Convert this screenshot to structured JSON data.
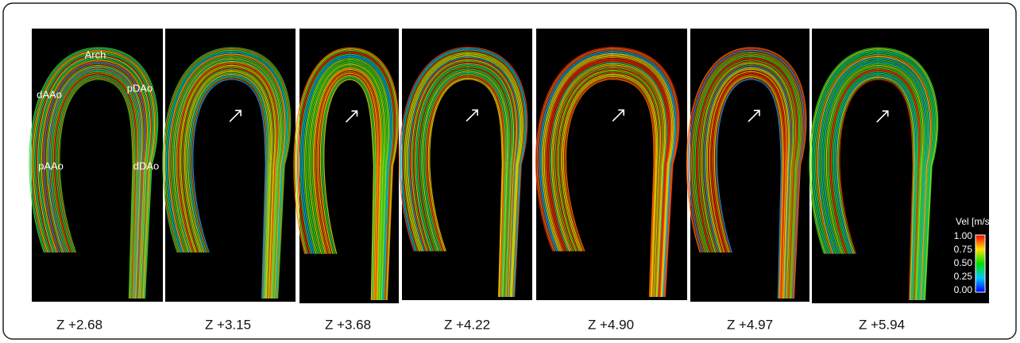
{
  "panels": [
    {
      "label": "Z +2.68"
    },
    {
      "label": "Z +3.15"
    },
    {
      "label": "Z +3.68"
    },
    {
      "label": "Z +4.22"
    },
    {
      "label": "Z +4.90"
    },
    {
      "label": "Z +4.97"
    },
    {
      "label": "Z +5.94"
    }
  ],
  "anatomy_labels": [
    "Arch",
    "dAAo",
    "pDAo",
    "pAAo",
    "dDAo"
  ],
  "colorbar": {
    "title": "Vel [m/s]",
    "ticks": [
      "1.00",
      "0.75",
      "0.50",
      "0.25",
      "0.00"
    ]
  }
}
